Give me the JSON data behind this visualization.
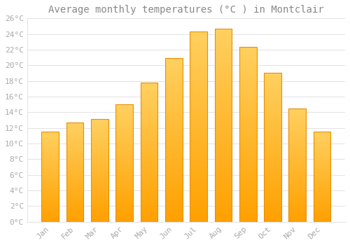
{
  "title": "Average monthly temperatures (°C ) in Montclair",
  "months": [
    "Jan",
    "Feb",
    "Mar",
    "Apr",
    "May",
    "Jun",
    "Jul",
    "Aug",
    "Sep",
    "Oct",
    "Nov",
    "Dec"
  ],
  "values": [
    11.5,
    12.7,
    13.1,
    15.0,
    17.8,
    20.9,
    24.3,
    24.7,
    22.4,
    19.0,
    14.5,
    11.5
  ],
  "bar_color_top": "#FFD060",
  "bar_color_bottom": "#FFA000",
  "bar_edge_color": "#E89000",
  "background_color": "#FFFFFF",
  "grid_color": "#DDDDDD",
  "text_color": "#AAAAAA",
  "title_color": "#888888",
  "ylim": [
    0,
    26
  ],
  "yticks": [
    0,
    2,
    4,
    6,
    8,
    10,
    12,
    14,
    16,
    18,
    20,
    22,
    24,
    26
  ],
  "title_fontsize": 10,
  "tick_fontsize": 8,
  "title_font": "monospace",
  "tick_font": "monospace",
  "bar_width": 0.7
}
